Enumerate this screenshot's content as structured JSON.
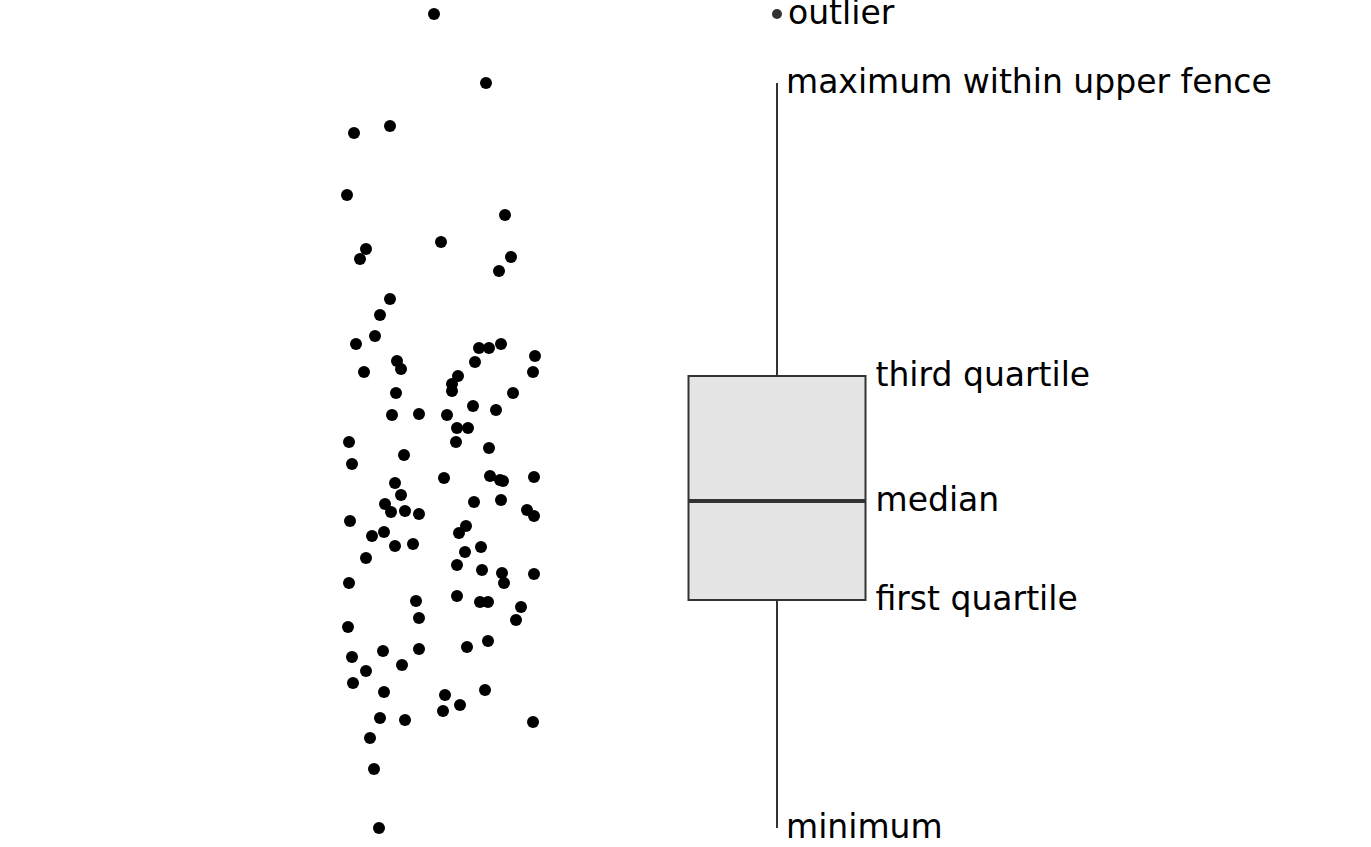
{
  "chart_data": {
    "type": "box",
    "xlim": [
      0,
      13.71
    ],
    "ylim": [
      0,
      8.47
    ],
    "tick_labels": false,
    "points": {
      "x": [
        4.34,
        4.86,
        3.54,
        3.9,
        3.47,
        5.05,
        4.41,
        3.66,
        3.6,
        5.11,
        4.99,
        3.9,
        3.8,
        3.75,
        3.56,
        4.79,
        4.89,
        5.01,
        5.35,
        3.97,
        4.01,
        4.75,
        3.64,
        4.58,
        5.33,
        4.52,
        4.52,
        3.96,
        5.13,
        4.73,
        4.96,
        3.92,
        4.19,
        4.47,
        4.57,
        4.68,
        3.49,
        4.56,
        4.89,
        4.04,
        3.52,
        4.44,
        4.9,
        5.0,
        5.03,
        5.34,
        3.95,
        4.01,
        4.74,
        5.01,
        3.85,
        3.91,
        4.05,
        4.19,
        5.27,
        5.34,
        4.66,
        3.5,
        3.84,
        3.72,
        4.59,
        4.13,
        3.95,
        4.81,
        4.65,
        3.66,
        4.57,
        4.82,
        5.02,
        5.34,
        5.04,
        3.49,
        4.57,
        4.16,
        4.8,
        4.88,
        5.21,
        4.19,
        5.16,
        3.48,
        4.88,
        4.67,
        4.19,
        3.83,
        3.52,
        4.02,
        3.66,
        3.53,
        3.84,
        4.85,
        4.45,
        4.6,
        4.43,
        3.8,
        4.05,
        5.33,
        3.7,
        3.74,
        3.79
      ],
      "y": [
        8.33,
        7.64,
        7.14,
        7.21,
        6.52,
        6.32,
        6.05,
        5.98,
        5.88,
        5.9,
        5.76,
        5.48,
        5.32,
        5.11,
        5.03,
        4.99,
        4.99,
        5.03,
        4.91,
        4.86,
        4.78,
        4.85,
        4.75,
        4.71,
        4.75,
        4.63,
        4.56,
        4.54,
        4.54,
        4.41,
        4.37,
        4.32,
        4.33,
        4.32,
        4.19,
        4.19,
        4.05,
        4.05,
        3.99,
        3.92,
        3.83,
        3.69,
        3.71,
        3.67,
        3.66,
        3.7,
        3.64,
        3.52,
        3.45,
        3.47,
        3.43,
        3.35,
        3.36,
        3.33,
        3.37,
        3.31,
        3.21,
        3.26,
        3.15,
        3.11,
        3.14,
        3.03,
        3.01,
        3.0,
        2.95,
        2.89,
        2.82,
        2.77,
        2.74,
        2.73,
        2.64,
        2.64,
        2.51,
        2.46,
        2.45,
        2.45,
        2.4,
        2.29,
        2.27,
        2.2,
        2.06,
        2.0,
        1.98,
        1.96,
        1.9,
        1.82,
        1.76,
        1.64,
        1.55,
        1.57,
        1.52,
        1.42,
        1.36,
        1.29,
        1.27,
        1.25,
        1.09,
        0.78,
        0.19
      ]
    },
    "box": {
      "min": 0.19,
      "q1": 2.47,
      "median": 3.46,
      "q3": 4.71,
      "max": 7.64,
      "outliers": [
        8.33
      ]
    },
    "labels": {
      "outliers": "outlier",
      "max": "maximum within upper fence",
      "q3": "third quartile",
      "median": "median",
      "q1": "first quartile",
      "min": "minimum"
    }
  }
}
